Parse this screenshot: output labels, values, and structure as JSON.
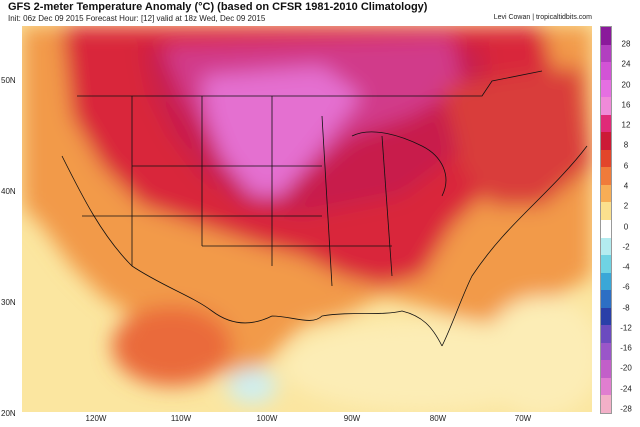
{
  "header": {
    "title": "GFS 2-meter Temperature Anomaly (°C) (based on CFSR 1981-2010 Climatology)",
    "subtitle": "Init: 06z Dec 09 2015   Forecast Hour: [12]   valid at 18z Wed, Dec 09 2015",
    "credit": "Levi Cowan | tropicaltidbits.com"
  },
  "map": {
    "lat_labels": [
      "50N",
      "40N",
      "30N",
      "20N"
    ],
    "lon_labels": [
      "120W",
      "110W",
      "100W",
      "90W",
      "80W",
      "70W"
    ]
  },
  "colorbar": {
    "labels": [
      "28",
      "24",
      "20",
      "16",
      "12",
      "8",
      "6",
      "4",
      "2",
      "0",
      "-2",
      "-4",
      "-6",
      "-8",
      "-12",
      "-16",
      "-20",
      "-24",
      "-28"
    ],
    "colors": [
      "#8a1a9b",
      "#b23fc0",
      "#d253d6",
      "#e56fe2",
      "#f08ad9",
      "#e02a78",
      "#cc1a36",
      "#e2452b",
      "#f07b3a",
      "#f7ad55",
      "#fbe08e",
      "#ffffff",
      "#b3ecf0",
      "#6fd3e3",
      "#3aa7d7",
      "#2d6fc4",
      "#2a3fa8",
      "#6b4bbf",
      "#9a56c9",
      "#c25fc9",
      "#e07ed0",
      "#f3b0c8"
    ]
  }
}
